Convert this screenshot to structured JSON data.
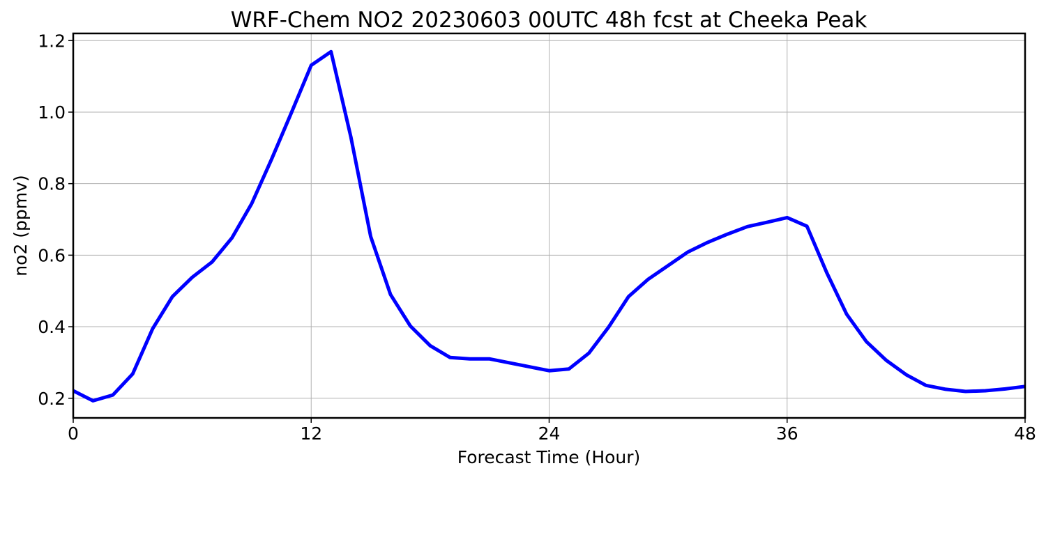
{
  "chart_data": {
    "type": "line",
    "title": "WRF-Chem NO2  20230603 00UTC 48h fcst at Cheeka Peak",
    "xlabel": "Forecast Time (Hour)",
    "ylabel": "no2  (ppmv)",
    "xlim": [
      0,
      48
    ],
    "ylim": [
      0.145,
      1.22
    ],
    "xticks": [
      0,
      12,
      24,
      36,
      48
    ],
    "yticks": [
      0.2,
      0.4,
      0.6,
      0.8,
      1.0,
      1.2
    ],
    "ytick_labels": [
      "0.2",
      "0.4",
      "0.6",
      "0.8",
      "1.0",
      "1.2"
    ],
    "grid": true,
    "series": [
      {
        "color": "#0000ff",
        "x": [
          0,
          1,
          2,
          3,
          4,
          5,
          6,
          7,
          8,
          9,
          10,
          11,
          12,
          13,
          14,
          15,
          16,
          17,
          18,
          19,
          20,
          21,
          22,
          23,
          24,
          25,
          26,
          27,
          28,
          29,
          30,
          31,
          32,
          33,
          34,
          35,
          36,
          37,
          38,
          39,
          40,
          41,
          42,
          43,
          44,
          45,
          46,
          47,
          48
        ],
        "y": [
          0.221,
          0.193,
          0.209,
          0.268,
          0.394,
          0.484,
          0.538,
          0.581,
          0.648,
          0.744,
          0.868,
          0.998,
          1.131,
          1.169,
          0.931,
          0.652,
          0.49,
          0.402,
          0.347,
          0.314,
          0.31,
          0.31,
          0.299,
          0.288,
          0.277,
          0.282,
          0.326,
          0.399,
          0.484,
          0.533,
          0.571,
          0.609,
          0.636,
          0.659,
          0.68,
          0.692,
          0.705,
          0.681,
          0.551,
          0.435,
          0.358,
          0.306,
          0.266,
          0.236,
          0.225,
          0.219,
          0.221,
          0.226,
          0.233
        ]
      }
    ]
  }
}
